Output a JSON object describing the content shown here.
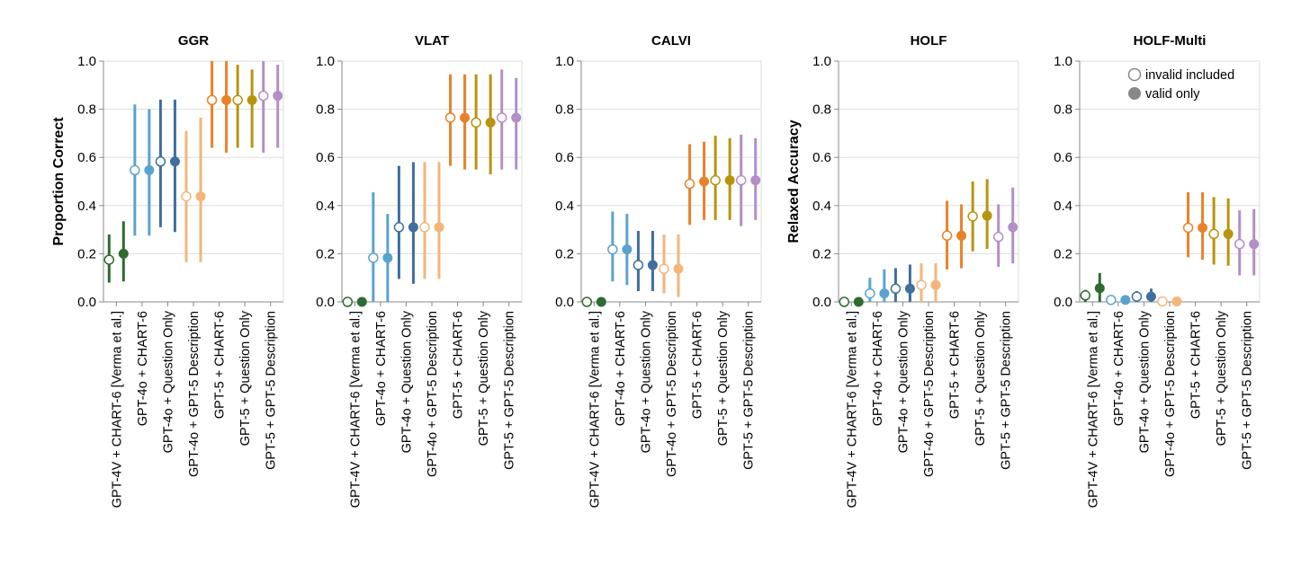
{
  "chart_data": {
    "type": "scatter",
    "subtype": "point-with-error-bars",
    "categories": [
      "GPT-4V + CHART-6 [Verma et al.]",
      "GPT-4o + CHART-6",
      "GPT-4o + Question Only",
      "GPT-4o + GPT-5 Description",
      "GPT-5 + CHART-6",
      "GPT-5 + Question Only",
      "GPT-5 + GPT-5 Description"
    ],
    "category_colors": [
      "#2e6b30",
      "#5aa3cf",
      "#3f6f9e",
      "#f4b57a",
      "#e8822a",
      "#b8940e",
      "#b48ec6"
    ],
    "legend": {
      "placement": "top-right",
      "entries": [
        {
          "label": "invalid included",
          "marker": "open-circle"
        },
        {
          "label": "valid only",
          "marker": "filled-circle"
        }
      ]
    },
    "ylim": [
      0,
      1
    ],
    "yticks": [
      "0.0",
      "0.2",
      "0.4",
      "0.6",
      "0.8",
      "1.0"
    ],
    "grid": true,
    "panels": [
      {
        "title": "GGR",
        "ylabel": "Proportion Correct",
        "series": [
          {
            "name": "invalid included",
            "values": [
              0.175,
              0.547,
              0.583,
              0.438,
              0.838,
              0.838,
              0.856
            ],
            "ci_low": [
              0.08,
              0.275,
              0.31,
              0.165,
              0.64,
              0.64,
              0.62
            ],
            "ci_high": [
              0.28,
              0.82,
              0.84,
              0.71,
              1.0,
              0.985,
              1.0
            ]
          },
          {
            "name": "valid only",
            "values": [
              0.2,
              0.547,
              0.583,
              0.438,
              0.838,
              0.838,
              0.856
            ],
            "ci_low": [
              0.085,
              0.275,
              0.29,
              0.165,
              0.62,
              0.64,
              0.64
            ],
            "ci_high": [
              0.335,
              0.8,
              0.84,
              0.765,
              1.0,
              0.965,
              0.985
            ]
          }
        ]
      },
      {
        "title": "VLAT",
        "ylabel": "",
        "series": [
          {
            "name": "invalid included",
            "values": [
              0.0,
              0.183,
              0.31,
              0.31,
              0.765,
              0.745,
              0.765
            ],
            "ci_low": [
              0.0,
              0.0,
              0.095,
              0.095,
              0.565,
              0.55,
              0.55
            ],
            "ci_high": [
              0.0,
              0.455,
              0.565,
              0.58,
              0.945,
              0.945,
              0.965
            ]
          },
          {
            "name": "valid only",
            "values": [
              0.0,
              0.183,
              0.31,
              0.31,
              0.765,
              0.745,
              0.765
            ],
            "ci_low": [
              0.0,
              0.0,
              0.075,
              0.095,
              0.55,
              0.53,
              0.55
            ],
            "ci_high": [
              0.0,
              0.365,
              0.58,
              0.58,
              0.945,
              0.945,
              0.93
            ]
          }
        ]
      },
      {
        "title": "CALVI",
        "ylabel": "",
        "series": [
          {
            "name": "invalid included",
            "values": [
              0.0,
              0.218,
              0.153,
              0.137,
              0.49,
              0.505,
              0.505
            ],
            "ci_low": [
              0.0,
              0.085,
              0.045,
              0.035,
              0.32,
              0.34,
              0.315
            ],
            "ci_high": [
              0.0,
              0.375,
              0.295,
              0.28,
              0.655,
              0.69,
              0.695
            ]
          },
          {
            "name": "valid only",
            "values": [
              0.0,
              0.218,
              0.153,
              0.137,
              0.5,
              0.505,
              0.505
            ],
            "ci_low": [
              0.0,
              0.07,
              0.045,
              0.02,
              0.34,
              0.34,
              0.34
            ],
            "ci_high": [
              0.0,
              0.365,
              0.295,
              0.28,
              0.665,
              0.68,
              0.68
            ]
          }
        ]
      },
      {
        "title": "HOLF",
        "ylabel": "Relaxed Accuracy",
        "series": [
          {
            "name": "invalid included",
            "values": [
              0.0,
              0.035,
              0.055,
              0.07,
              0.275,
              0.355,
              0.27
            ],
            "ci_low": [
              0.0,
              0.0,
              0.0,
              0.0,
              0.135,
              0.21,
              0.145
            ],
            "ci_high": [
              0.0,
              0.1,
              0.14,
              0.16,
              0.42,
              0.5,
              0.405
            ]
          },
          {
            "name": "valid only",
            "values": [
              0.0,
              0.035,
              0.055,
              0.07,
              0.275,
              0.358,
              0.31
            ],
            "ci_low": [
              0.0,
              0.0,
              0.0,
              0.0,
              0.14,
              0.22,
              0.16
            ],
            "ci_high": [
              0.0,
              0.135,
              0.155,
              0.16,
              0.405,
              0.51,
              0.475
            ]
          }
        ]
      },
      {
        "title": "HOLF-Multi",
        "ylabel": "",
        "series": [
          {
            "name": "invalid included",
            "values": [
              0.027,
              0.008,
              0.022,
              0.002,
              0.308,
              0.282,
              0.24
            ],
            "ci_low": [
              0.0,
              0.0,
              0.0,
              0.0,
              0.185,
              0.155,
              0.11
            ],
            "ci_high": [
              0.05,
              0.015,
              0.045,
              0.005,
              0.455,
              0.435,
              0.38
            ]
          },
          {
            "name": "valid only",
            "values": [
              0.057,
              0.008,
              0.022,
              0.002,
              0.308,
              0.282,
              0.24
            ],
            "ci_low": [
              0.0,
              0.0,
              0.0,
              0.0,
              0.175,
              0.15,
              0.11
            ],
            "ci_high": [
              0.12,
              0.015,
              0.055,
              0.005,
              0.455,
              0.43,
              0.385
            ]
          }
        ]
      }
    ]
  }
}
